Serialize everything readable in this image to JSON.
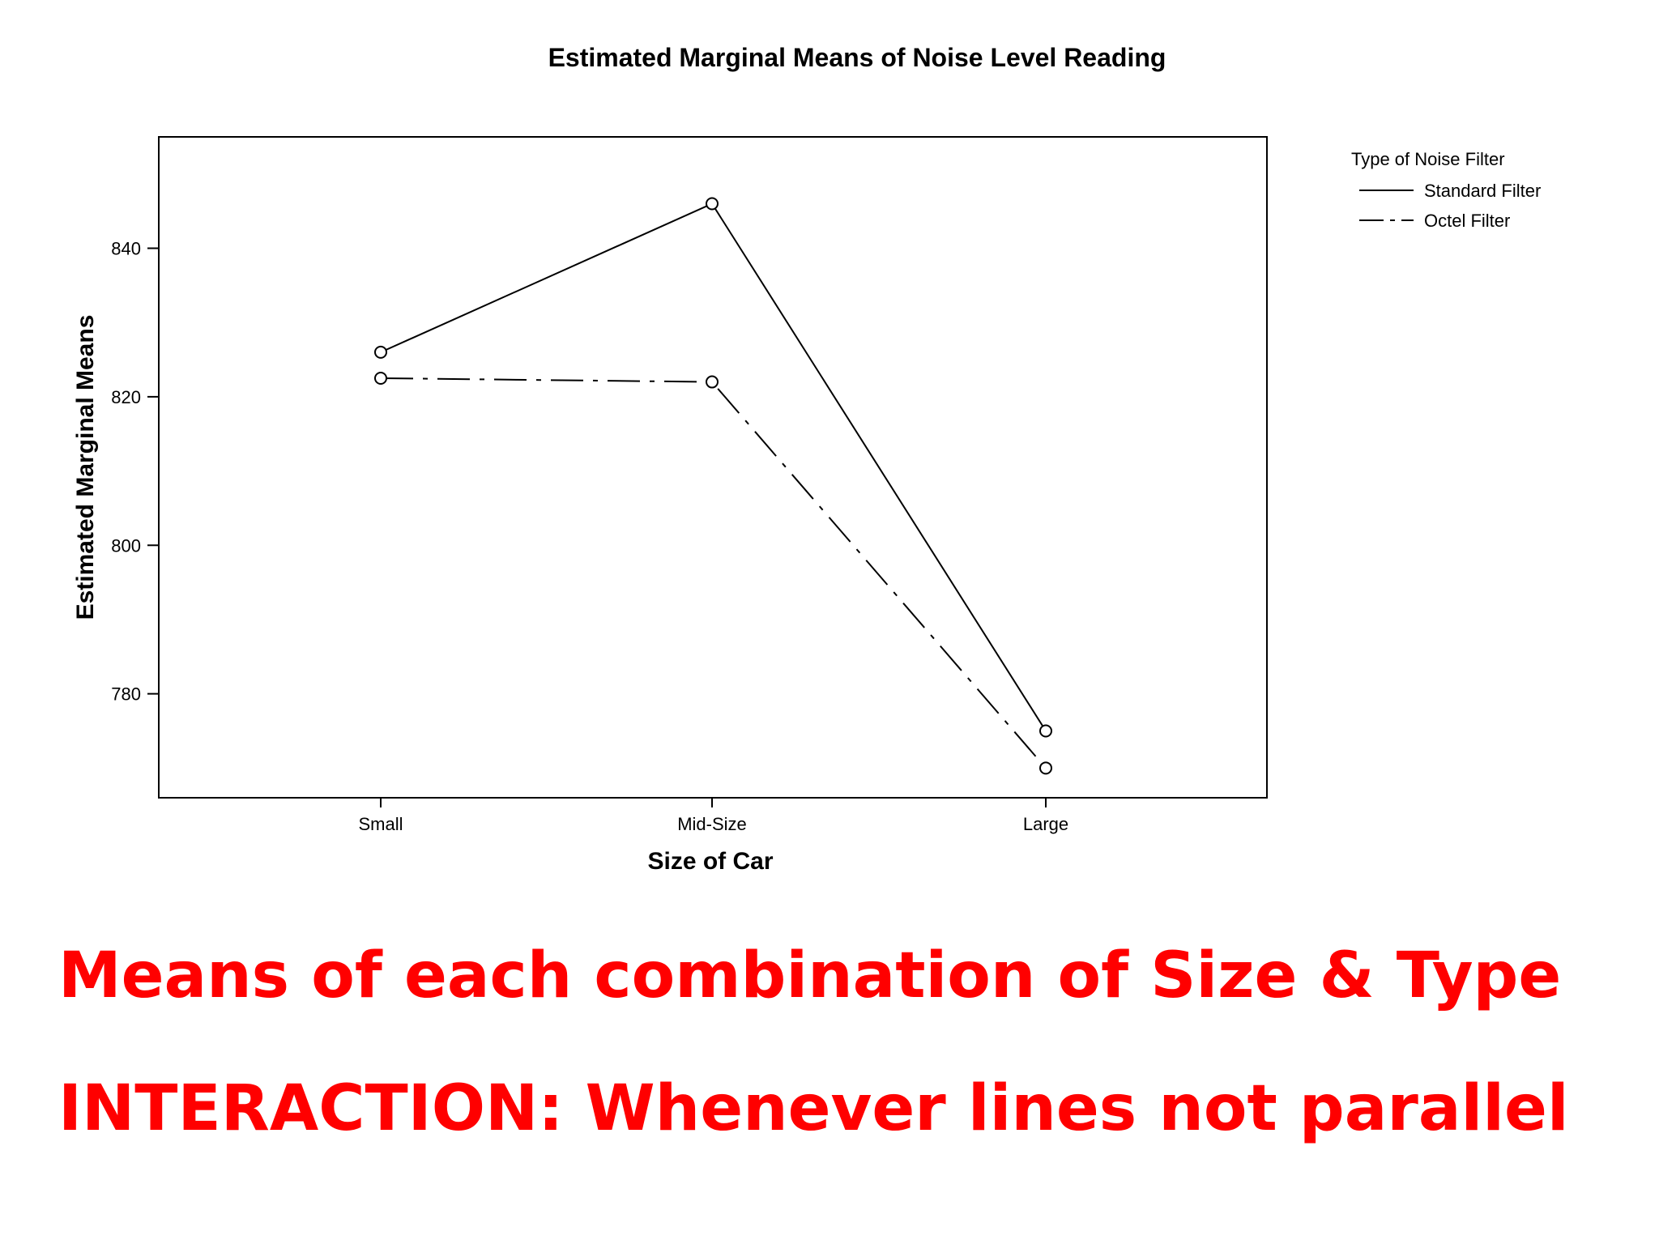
{
  "chart_data": {
    "type": "line",
    "title": "Estimated Marginal Means of Noise Level Reading",
    "xlabel": "Size of Car",
    "ylabel": "Estimated Marginal Means",
    "categories": [
      "Small",
      "Mid-Size",
      "Large"
    ],
    "y_ticks": [
      780,
      800,
      820,
      840
    ],
    "ylim": [
      766,
      855
    ],
    "legend": {
      "title": "Type of Noise Filter",
      "placement": "right"
    },
    "series": [
      {
        "name": "Standard Filter",
        "values": [
          826,
          846,
          775
        ],
        "style": "solid",
        "marker": "open-circle"
      },
      {
        "name": "Octel Filter",
        "values": [
          822.5,
          822,
          770
        ],
        "style": "dash-dot",
        "marker": "open-circle"
      }
    ],
    "grid": false
  },
  "captions": {
    "line1": "Means of each combination of Size & Type",
    "line2": "INTERACTION:  Whenever lines not parallel"
  },
  "colors": {
    "caption": "#ff0000",
    "lines": "#000000"
  }
}
